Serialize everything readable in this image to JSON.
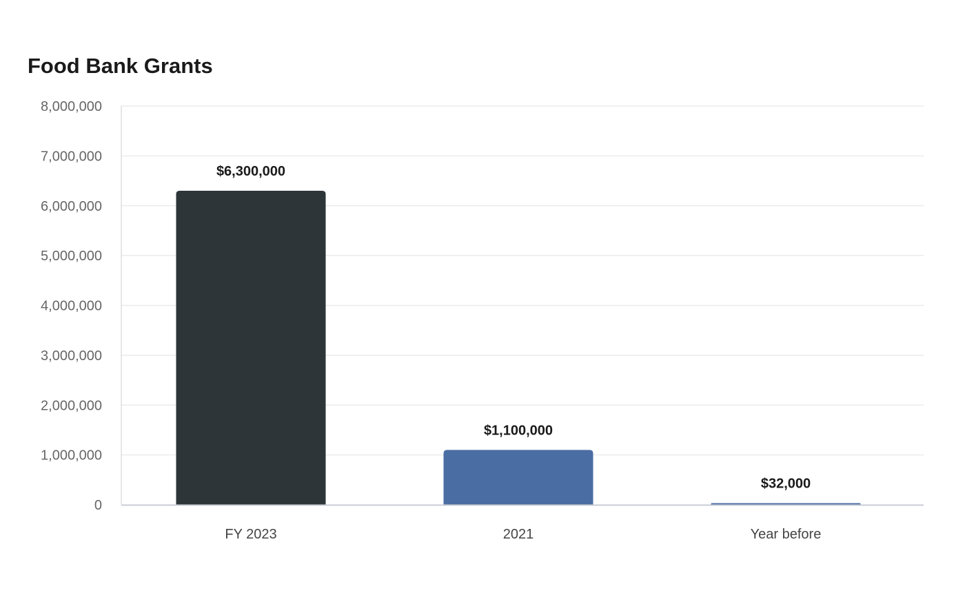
{
  "chart_data": {
    "type": "bar",
    "title": "Food Bank Grants",
    "categories": [
      "FY 2023",
      "2021",
      "Year before"
    ],
    "values": [
      6300000,
      1100000,
      32000
    ],
    "data_labels": [
      "$6,300,000",
      "$1,100,000",
      "$32,000"
    ],
    "bar_colors": [
      "#2e3538",
      "#4a6da3",
      "#4a6da3"
    ],
    "xlabel": "",
    "ylabel": "",
    "ylim": [
      0,
      8000000
    ],
    "yticks": [
      0,
      1000000,
      2000000,
      3000000,
      4000000,
      5000000,
      6000000,
      7000000,
      8000000
    ],
    "ytick_labels": [
      "0",
      "1,000,000",
      "2,000,000",
      "3,000,000",
      "4,000,000",
      "5,000,000",
      "6,000,000",
      "7,000,000",
      "8,000,000"
    ],
    "grid": true,
    "legend": "none"
  }
}
